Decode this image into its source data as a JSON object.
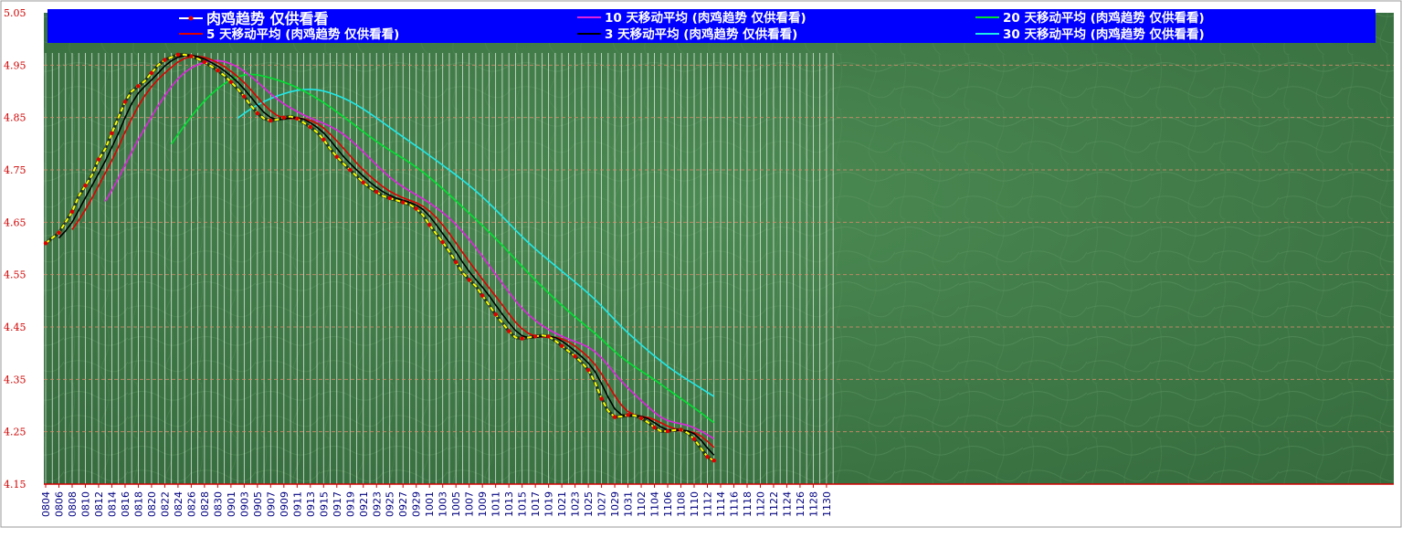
{
  "chart_data": {
    "type": "line",
    "ylim": [
      4.15,
      5.05
    ],
    "yticks": [
      "4.15",
      "4.25",
      "4.35",
      "4.45",
      "4.55",
      "4.65",
      "4.75",
      "4.85",
      "4.95",
      "5.05"
    ],
    "x_tick_labels": [
      "0804",
      "0806",
      "0808",
      "0810",
      "0812",
      "0814",
      "0816",
      "0818",
      "0820",
      "0822",
      "0824",
      "0826",
      "0828",
      "0830",
      "0901",
      "0903",
      "0905",
      "0907",
      "0909",
      "0911",
      "0913",
      "0915",
      "0917",
      "0919",
      "0921",
      "0923",
      "0925",
      "0927",
      "0929",
      "1001",
      "1003",
      "1005",
      "1007",
      "1009",
      "1011",
      "1013",
      "1015",
      "1017",
      "1019",
      "1021",
      "1023",
      "1025",
      "1027",
      "1029",
      "1031",
      "1102",
      "1104",
      "1106",
      "1108",
      "1110",
      "1112",
      "1114",
      "1116",
      "1118",
      "1120",
      "1122",
      "1124",
      "1126",
      "1128",
      "1130"
    ],
    "n_slots": 120,
    "grid": true,
    "legend_position": "top",
    "series": [
      {
        "name": "肉鸡趋势 仅供看看",
        "color": "#ffff00",
        "marker_color": "#e00000",
        "start": 0,
        "values": [
          4.61,
          4.62,
          4.63,
          4.65,
          4.67,
          4.7,
          4.72,
          4.74,
          4.77,
          4.79,
          4.82,
          4.85,
          4.88,
          4.9,
          4.91,
          4.92,
          4.935,
          4.95,
          4.96,
          4.965,
          4.97,
          4.97,
          4.967,
          4.962,
          4.956,
          4.948,
          4.94,
          4.93,
          4.918,
          4.905,
          4.89,
          4.873,
          4.858,
          4.848,
          4.844,
          4.846,
          4.85,
          4.852,
          4.848,
          4.84,
          4.832,
          4.822,
          4.808,
          4.79,
          4.775,
          4.762,
          4.75,
          4.738,
          4.726,
          4.716,
          4.708,
          4.7,
          4.696,
          4.692,
          4.688,
          4.684,
          4.676,
          4.664,
          4.645,
          4.628,
          4.612,
          4.594,
          4.574,
          4.554,
          4.54,
          4.528,
          4.51,
          4.492,
          4.474,
          4.458,
          4.442,
          4.43,
          4.428,
          4.43,
          4.432,
          4.434,
          4.432,
          4.424,
          4.414,
          4.404,
          4.394,
          4.382,
          4.368,
          4.345,
          4.313,
          4.29,
          4.278,
          4.279,
          4.282,
          4.281,
          4.276,
          4.268,
          4.258,
          4.251,
          4.251,
          4.253,
          4.254,
          4.248,
          4.236,
          4.219,
          4.202,
          4.195
        ]
      },
      {
        "name": "3 天移动平均 (肉鸡趋势 仅供看看)",
        "color": "#000000",
        "start": 2,
        "values_from": 0,
        "window": 3
      },
      {
        "name": "5 天移动平均 (肉鸡趋势 仅供看看)",
        "color": "#e00000",
        "start": 4,
        "values_from": 0,
        "window": 5
      },
      {
        "name": "10 天移动平均 (肉鸡趋势 仅供看看)",
        "color": "#e020e0",
        "start": 9,
        "values_from": 0,
        "window": 10
      },
      {
        "name": "20 天移动平均 (肉鸡趋势 仅供看看)",
        "color": "#00e030",
        "start": 19,
        "values_from": 0,
        "window": 20
      },
      {
        "name": "30 天移动平均 (肉鸡趋势 仅供看看)",
        "color": "#20e8e8",
        "start": 29,
        "values_from": 0,
        "window": 30
      }
    ]
  },
  "legend": {
    "main": "肉鸡趋势 仅供看看",
    "ma10": "10 天移动平均 (肉鸡趋势 仅供看看)",
    "ma20": "20 天移动平均 (肉鸡趋势 仅供看看)",
    "ma5": "5 天移动平均 (肉鸡趋势 仅供看看)",
    "ma3": "3 天移动平均 (肉鸡趋势 仅供看看)",
    "ma30": "30 天移动平均 (肉鸡趋势 仅供看看)"
  },
  "colors": {
    "plot_background": "#3f7a47",
    "legend_background": "#0000ff",
    "axis_label": "#d00000",
    "x_label": "#000080",
    "gridline": "#d08a6a"
  }
}
